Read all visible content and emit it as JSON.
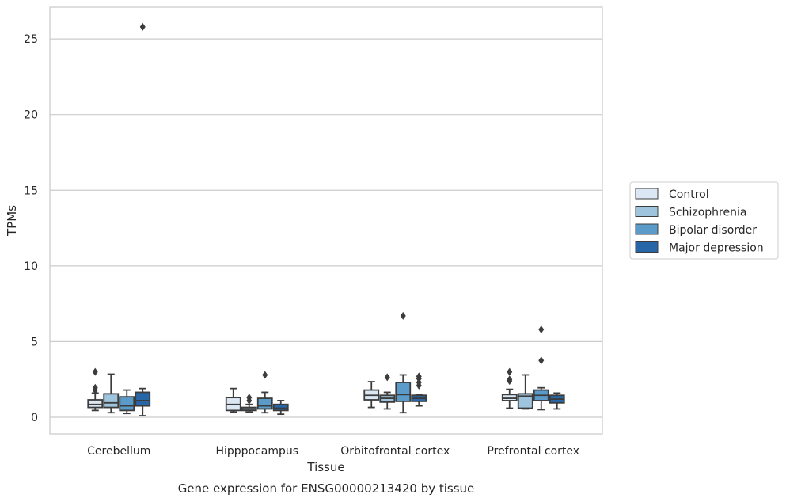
{
  "caption": "Gene expression for ENSG00000213420 by tissue",
  "chart_data": {
    "type": "box",
    "xlabel": "Tissue",
    "ylabel": "TPMs",
    "ylim": [
      -1.1,
      27.1
    ],
    "yticks": [
      0,
      5,
      10,
      15,
      20,
      25
    ],
    "grid": "horizontal",
    "legend_position": "right",
    "categories": [
      "Cerebellum",
      "Hipppocampus",
      "Orbitofrontal cortex",
      "Prefrontal cortex"
    ],
    "series": [
      {
        "name": "Control",
        "color": "#dbe8f4",
        "boxes": [
          {
            "whisker_low": 0.45,
            "q1": 0.65,
            "median": 0.85,
            "q3": 1.15,
            "whisker_high": 1.6,
            "outliers": [
              1.8,
              1.95,
              3.0
            ]
          },
          {
            "whisker_low": 0.35,
            "q1": 0.45,
            "median": 0.85,
            "q3": 1.3,
            "whisker_high": 1.9,
            "outliers": []
          },
          {
            "whisker_low": 0.65,
            "q1": 1.15,
            "median": 1.45,
            "q3": 1.8,
            "whisker_high": 2.35,
            "outliers": []
          },
          {
            "whisker_low": 0.6,
            "q1": 1.1,
            "median": 1.25,
            "q3": 1.5,
            "whisker_high": 1.85,
            "outliers": [
              2.4,
              2.5,
              3.0
            ]
          }
        ]
      },
      {
        "name": "Schizophrenia",
        "color": "#9fc5de",
        "boxes": [
          {
            "whisker_low": 0.3,
            "q1": 0.65,
            "median": 0.95,
            "q3": 1.55,
            "whisker_high": 2.85,
            "outliers": []
          },
          {
            "whisker_low": 0.35,
            "q1": 0.45,
            "median": 0.55,
            "q3": 0.65,
            "whisker_high": 0.85,
            "outliers": [
              1.1,
              1.3
            ]
          },
          {
            "whisker_low": 0.55,
            "q1": 1.0,
            "median": 1.25,
            "q3": 1.45,
            "whisker_high": 1.65,
            "outliers": [
              2.65
            ]
          },
          {
            "whisker_low": 0.55,
            "q1": 0.6,
            "median": 1.4,
            "q3": 1.55,
            "whisker_high": 2.8,
            "outliers": []
          }
        ]
      },
      {
        "name": "Bipolar disorder",
        "color": "#5b9bc9",
        "boxes": [
          {
            "whisker_low": 0.25,
            "q1": 0.45,
            "median": 0.75,
            "q3": 1.35,
            "whisker_high": 1.8,
            "outliers": []
          },
          {
            "whisker_low": 0.3,
            "q1": 0.55,
            "median": 0.75,
            "q3": 1.25,
            "whisker_high": 1.65,
            "outliers": [
              2.8
            ]
          },
          {
            "whisker_low": 0.3,
            "q1": 1.05,
            "median": 1.5,
            "q3": 2.3,
            "whisker_high": 2.8,
            "outliers": [
              6.7
            ]
          },
          {
            "whisker_low": 0.5,
            "q1": 1.1,
            "median": 1.45,
            "q3": 1.8,
            "whisker_high": 1.95,
            "outliers": [
              3.75,
              5.8
            ]
          }
        ]
      },
      {
        "name": "Major depression",
        "color": "#2767a8",
        "boxes": [
          {
            "whisker_low": 0.1,
            "q1": 0.75,
            "median": 1.1,
            "q3": 1.65,
            "whisker_high": 1.9,
            "outliers": [
              25.8
            ]
          },
          {
            "whisker_low": 0.2,
            "q1": 0.45,
            "median": 0.6,
            "q3": 0.85,
            "whisker_high": 1.1,
            "outliers": []
          },
          {
            "whisker_low": 0.75,
            "q1": 1.05,
            "median": 1.25,
            "q3": 1.45,
            "whisker_high": 1.5,
            "outliers": [
              2.1,
              2.3,
              2.55,
              2.7
            ]
          },
          {
            "whisker_low": 0.55,
            "q1": 0.95,
            "median": 1.2,
            "q3": 1.45,
            "whisker_high": 1.6,
            "outliers": []
          }
        ]
      }
    ]
  }
}
